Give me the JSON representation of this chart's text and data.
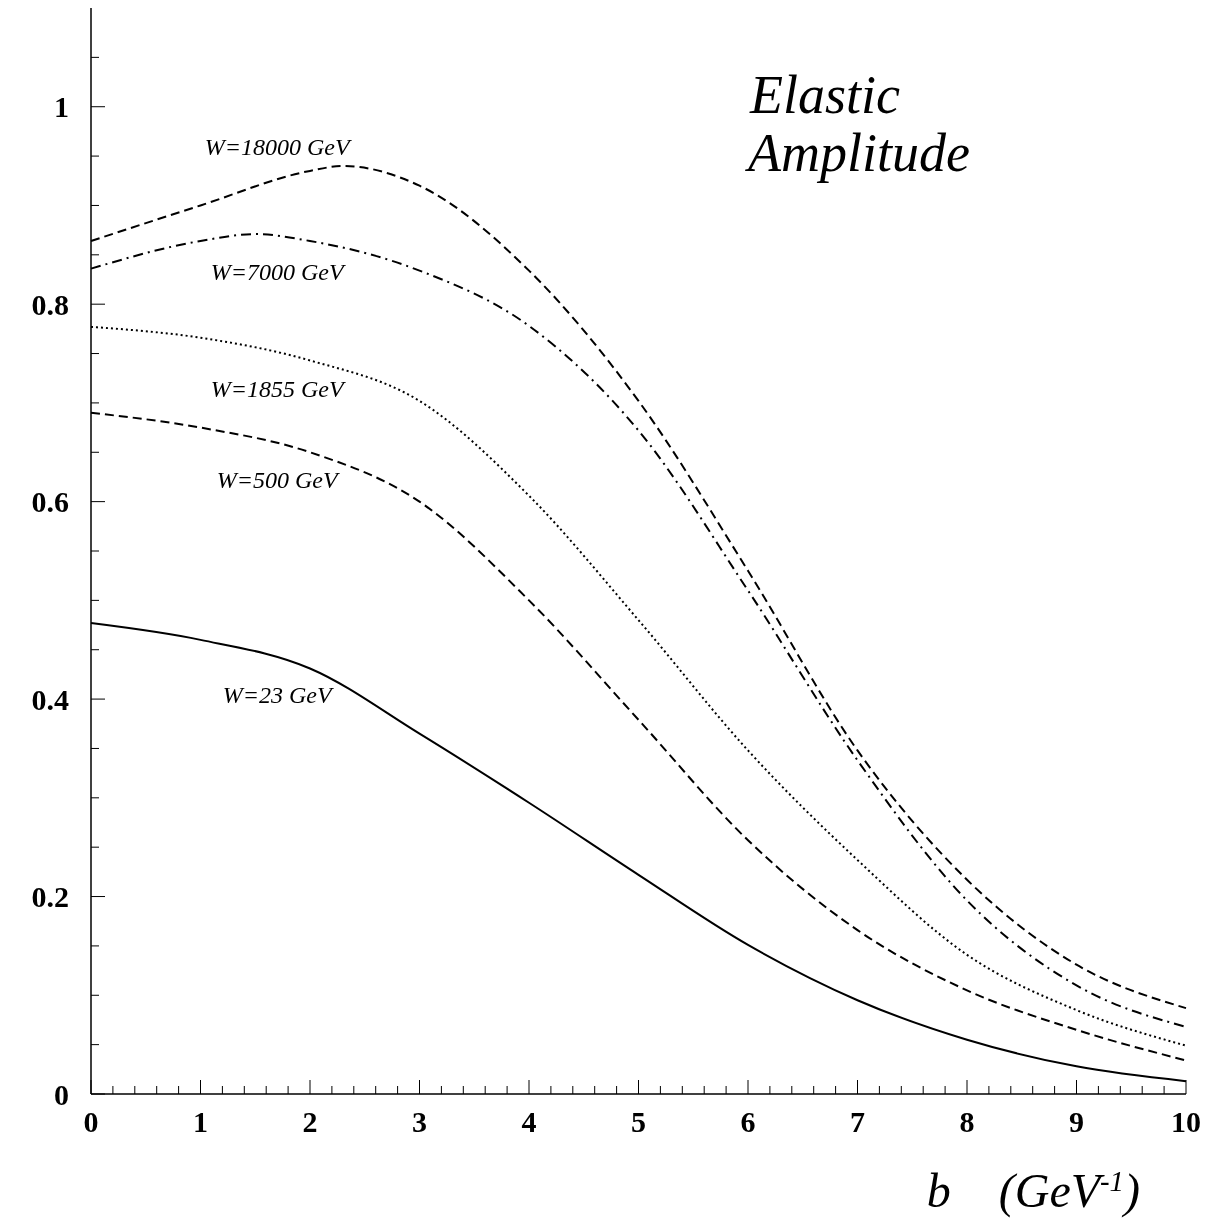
{
  "chart_data": {
    "type": "line",
    "title": "Elastic Amplitude",
    "xlabel": "b    (GeV$^{-1}$)",
    "x": [
      0,
      1,
      2,
      3,
      4,
      5,
      6,
      7,
      8,
      9,
      10
    ],
    "series": [
      {
        "name": "W=23 GeV",
        "color": "#000000",
        "line_style": "solid",
        "values": [
          0.477,
          0.46,
          0.431,
          0.365,
          0.295,
          0.222,
          0.151,
          0.095,
          0.055,
          0.028,
          0.013
        ]
      },
      {
        "name": "W=500 GeV",
        "color": "#000000",
        "line_style": "dashed",
        "values": [
          0.69,
          0.675,
          0.65,
          0.6,
          0.5,
          0.379,
          0.257,
          0.166,
          0.105,
          0.065,
          0.034
        ]
      },
      {
        "name": "W=1855 GeV",
        "color": "#000000",
        "line_style": "dotted",
        "values": [
          0.777,
          0.766,
          0.743,
          0.702,
          0.606,
          0.48,
          0.348,
          0.237,
          0.141,
          0.085,
          0.049
        ]
      },
      {
        "name": "W=7000 GeV",
        "color": "#000000",
        "line_style": "dashdot",
        "x": [
          0,
          1,
          1.5,
          2,
          3,
          4,
          5,
          6,
          7,
          8,
          9,
          10
        ],
        "values": [
          0.836,
          0.864,
          0.871,
          0.864,
          0.834,
          0.778,
          0.672,
          0.51,
          0.338,
          0.196,
          0.11,
          0.068
        ]
      },
      {
        "name": "W=18000 GeV",
        "color": "#000000",
        "line_style": "dashed",
        "x": [
          0,
          1,
          2,
          2.3,
          3,
          4,
          5,
          6,
          7,
          8,
          9,
          10
        ],
        "values": [
          0.864,
          0.9,
          0.935,
          0.94,
          0.92,
          0.834,
          0.702,
          0.53,
          0.348,
          0.217,
          0.131,
          0.087
        ]
      }
    ],
    "xlim": [
      0,
      10
    ],
    "ylim": [
      0,
      1.1
    ],
    "xticks": [
      0,
      {
        "value": 0.2,
        "label": null
      },
      {
        "value": 0.4,
        "label": null
      },
      {
        "value": 0.6,
        "label": null
      },
      {
        "value": 0.8,
        "label": null
      },
      1,
      {
        "value": 1.2,
        "label": null
      },
      {
        "value": 1.4,
        "label": null
      },
      {
        "value": 1.6,
        "label": null
      },
      {
        "value": 1.8,
        "label": null
      },
      2,
      {
        "value": 2.2,
        "label": null
      },
      {
        "value": 2.4,
        "label": null
      },
      {
        "value": 2.6,
        "label": null
      },
      {
        "value": 2.8,
        "label": null
      },
      3,
      {
        "value": 3.2,
        "label": null
      },
      {
        "value": 3.4,
        "label": null
      },
      {
        "value": 3.6,
        "label": null
      },
      {
        "value": 3.8,
        "label": null
      },
      4,
      {
        "value": 4.2,
        "label": null
      },
      {
        "value": 4.4,
        "label": null
      },
      {
        "value": 4.6,
        "label": null
      },
      {
        "value": 4.8,
        "label": null
      },
      5,
      {
        "value": 5.2,
        "label": null
      },
      {
        "value": 5.4,
        "label": null
      },
      {
        "value": 5.6,
        "label": null
      },
      {
        "value": 5.8,
        "label": null
      },
      6,
      {
        "value": 6.2,
        "label": null
      },
      {
        "value": 6.4,
        "label": null
      },
      {
        "value": 6.6,
        "label": null
      },
      {
        "value": 6.8,
        "label": null
      },
      7,
      {
        "value": 7.2,
        "label": null
      },
      {
        "value": 7.4,
        "label": null
      },
      {
        "value": 7.6,
        "label": null
      },
      {
        "value": 7.8,
        "label": null
      },
      8,
      {
        "value": 8.2,
        "label": null
      },
      {
        "value": 8.4,
        "label": null
      },
      {
        "value": 8.6,
        "label": null
      },
      {
        "value": 8.8,
        "label": null
      },
      9,
      {
        "value": 9.2,
        "label": null
      },
      {
        "value": 9.4,
        "label": null
      },
      {
        "value": 9.6,
        "label": null
      },
      {
        "value": 9.8,
        "label": null
      },
      10
    ],
    "yticks": [
      0,
      {
        "value": 0.05,
        "label": null
      },
      {
        "value": 0.1,
        "label": null
      },
      {
        "value": 0.15,
        "label": null
      },
      0.2,
      {
        "value": 0.25,
        "label": null
      },
      {
        "value": 0.3,
        "label": null
      },
      {
        "value": 0.35,
        "label": null
      },
      0.4,
      {
        "value": 0.45,
        "label": null
      },
      {
        "value": 0.5,
        "label": null
      },
      {
        "value": 0.55,
        "label": null
      },
      0.6,
      {
        "value": 0.65,
        "label": null
      },
      {
        "value": 0.7,
        "label": null
      },
      {
        "value": 0.75,
        "label": null
      },
      0.8,
      {
        "value": 0.85,
        "label": null
      },
      {
        "value": 0.9,
        "label": null
      },
      {
        "value": 0.95,
        "label": null
      },
      1,
      {
        "value": 1.05,
        "label": null
      }
    ],
    "grid": false
  }
}
